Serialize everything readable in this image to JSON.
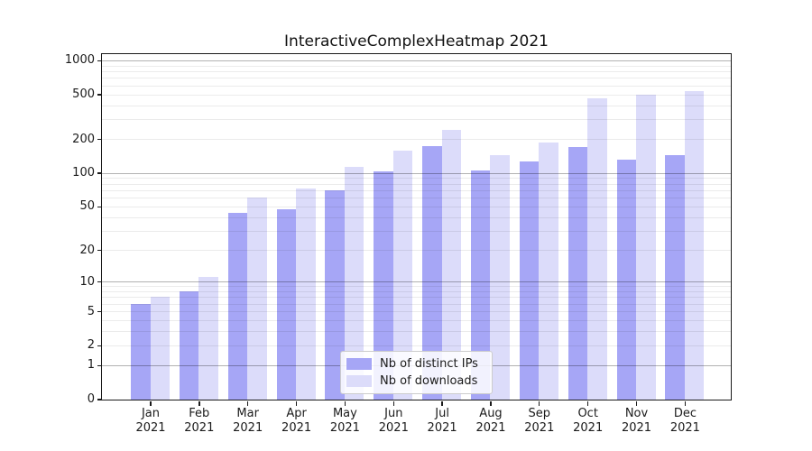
{
  "chart_data": {
    "type": "bar",
    "title": "InteractiveComplexHeatmap 2021",
    "categories": [
      "Jan",
      "Feb",
      "Mar",
      "Apr",
      "May",
      "Jun",
      "Jul",
      "Aug",
      "Sep",
      "Oct",
      "Nov",
      "Dec"
    ],
    "year_label": "2021",
    "series": [
      {
        "name": "Nb of distinct IPs",
        "color": "#a6a6f6",
        "values": [
          6,
          8,
          44,
          47,
          70,
          104,
          173,
          105,
          126,
          169,
          131,
          145
        ]
      },
      {
        "name": "Nb of downloads",
        "color": "#dcdcfa",
        "values": [
          7,
          11,
          60,
          73,
          113,
          157,
          240,
          144,
          188,
          464,
          497,
          537
        ]
      }
    ],
    "y_axis": {
      "scale": "log(value+1)",
      "tick_labels": [
        0,
        1,
        2,
        5,
        10,
        20,
        50,
        100,
        200,
        500,
        1000
      ],
      "major_gridlines": [
        1,
        10,
        100,
        1000
      ],
      "minor_gridlines": [
        2,
        3,
        4,
        5,
        6,
        7,
        8,
        9,
        20,
        30,
        40,
        50,
        60,
        70,
        80,
        90,
        200,
        300,
        400,
        500,
        600,
        700,
        800,
        900
      ],
      "max": 1145,
      "min": 0
    },
    "xlabel": "",
    "ylabel": "",
    "grid": "on",
    "legend_position": "lower center",
    "frame_color": "#1a1a1a",
    "background_color": "#ffffff"
  }
}
